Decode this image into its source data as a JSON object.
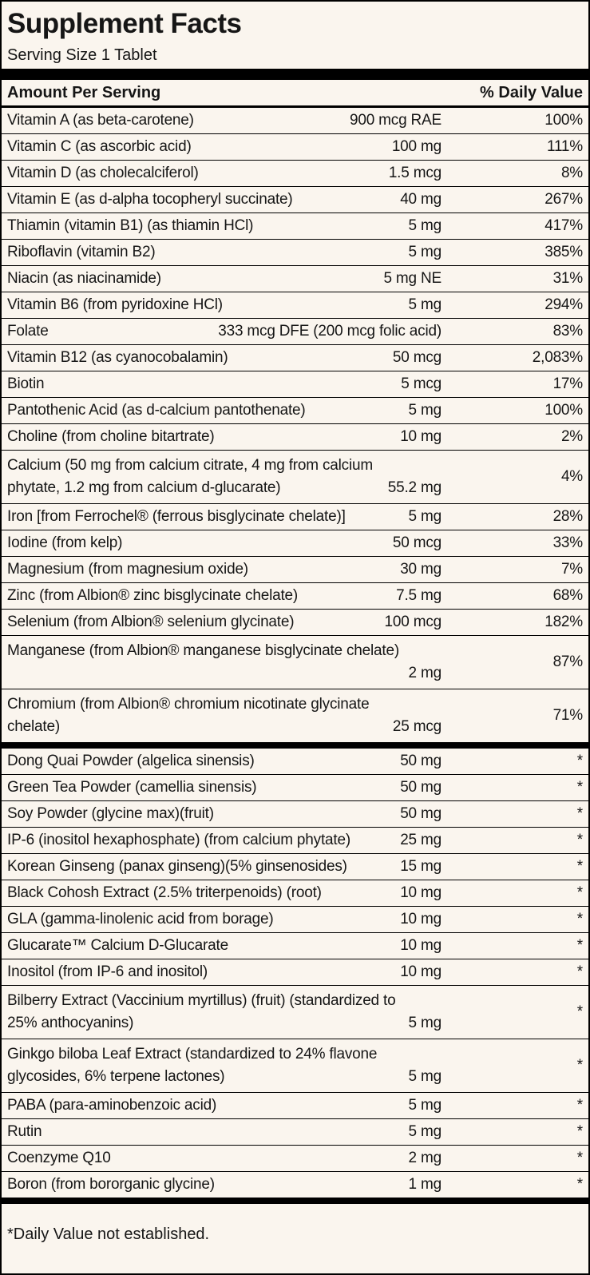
{
  "title": "Supplement Facts",
  "serving_size": "Serving Size 1 Tablet",
  "header": {
    "amount_label": "Amount Per Serving",
    "dv_label": "% Daily Value"
  },
  "footnote": "*Daily Value not established.",
  "colors": {
    "background": "#faf5ee",
    "text": "#161616",
    "rule": "#000000"
  },
  "sections": [
    {
      "rows": [
        {
          "name": "Vitamin A (as beta-carotene)",
          "amount": "900 mcg RAE",
          "dv": "100%"
        },
        {
          "name": "Vitamin C (as ascorbic acid)",
          "amount": "100 mg",
          "dv": "111%"
        },
        {
          "name": "Vitamin D (as cholecalciferol)",
          "amount": "1.5 mcg",
          "dv": "8%"
        },
        {
          "name": "Vitamin E (as d-alpha tocopheryl succinate)",
          "amount": "40 mg",
          "dv": "267%"
        },
        {
          "name": "Thiamin (vitamin B1) (as thiamin HCl)",
          "amount": "5 mg",
          "dv": "417%"
        },
        {
          "name": "Riboflavin (vitamin B2)",
          "amount": "5 mg",
          "dv": "385%"
        },
        {
          "name": "Niacin (as niacinamide)",
          "amount": "5 mg NE",
          "dv": "31%"
        },
        {
          "name": "Vitamin B6 (from pyridoxine HCl)",
          "amount": "5 mg",
          "dv": "294%"
        },
        {
          "name": "Folate",
          "amount": "333 mcg DFE (200 mcg folic acid)",
          "dv": "83%"
        },
        {
          "name": "Vitamin B12 (as cyanocobalamin)",
          "amount": "50 mcg",
          "dv": "2,083%"
        },
        {
          "name": "Biotin",
          "amount": "5 mcg",
          "dv": "17%"
        },
        {
          "name": "Pantothenic Acid (as d-calcium pantothenate)",
          "amount": "5 mg",
          "dv": "100%"
        },
        {
          "name": "Choline (from choline bitartrate)",
          "amount": "10 mg",
          "dv": "2%"
        },
        {
          "name": "Calcium (50 mg from calcium citrate, 4 mg from calcium",
          "name2": "phytate, 1.2 mg from calcium d-glucarate)",
          "amount": "55.2 mg",
          "dv": "4%"
        },
        {
          "name": "Iron [from Ferrochel® (ferrous bisglycinate chelate)]",
          "amount": "5 mg",
          "dv": "28%"
        },
        {
          "name": "Iodine (from kelp)",
          "amount": "50 mcg",
          "dv": "33%"
        },
        {
          "name": "Magnesium (from magnesium oxide)",
          "amount": "30 mg",
          "dv": "7%"
        },
        {
          "name": "Zinc (from Albion® zinc bisglycinate chelate)",
          "amount": "7.5 mg",
          "dv": "68%"
        },
        {
          "name": "Selenium (from Albion® selenium glycinate)",
          "amount": "100 mcg",
          "dv": "182%"
        },
        {
          "name": "Manganese (from Albion® manganese bisglycinate chelate)",
          "name2": "",
          "amount": "2 mg",
          "dv": "87%"
        },
        {
          "name": "Chromium (from Albion® chromium nicotinate glycinate",
          "name2": "chelate)",
          "amount": "25 mcg",
          "dv": "71%"
        }
      ]
    },
    {
      "rows": [
        {
          "name": "Dong Quai Powder (algelica sinensis)",
          "amount": "50 mg",
          "dv": "*"
        },
        {
          "name": "Green Tea Powder (camellia sinensis)",
          "amount": "50 mg",
          "dv": "*"
        },
        {
          "name": "Soy Powder (glycine max)(fruit)",
          "amount": "50 mg",
          "dv": "*"
        },
        {
          "name": "IP-6 (inositol hexaphosphate) (from calcium phytate)",
          "amount": "25 mg",
          "dv": "*"
        },
        {
          "name": "Korean Ginseng (panax ginseng)(5% ginsenosides)",
          "amount": "15 mg",
          "dv": "*"
        },
        {
          "name": "Black Cohosh Extract (2.5% triterpenoids) (root)",
          "amount": "10 mg",
          "dv": "*"
        },
        {
          "name": "GLA (gamma-linolenic acid from borage)",
          "amount": "10 mg",
          "dv": "*"
        },
        {
          "name": "Glucarate™ Calcium D-Glucarate",
          "amount": "10 mg",
          "dv": "*"
        },
        {
          "name": "Inositol (from IP-6 and inositol)",
          "amount": "10 mg",
          "dv": "*"
        },
        {
          "name": "Bilberry Extract (Vaccinium myrtillus) (fruit) (standardized to",
          "name2": "25% anthocyanins)",
          "amount": "5 mg",
          "dv": "*"
        },
        {
          "name": "Ginkgo biloba Leaf Extract (standardized to 24% flavone",
          "name2": "glycosides, 6% terpene lactones)",
          "amount": "5 mg",
          "dv": "*"
        },
        {
          "name": "PABA (para-aminobenzoic acid)",
          "amount": "5 mg",
          "dv": "*"
        },
        {
          "name": "Rutin",
          "amount": "5 mg",
          "dv": "*"
        },
        {
          "name": "Coenzyme Q10",
          "amount": "2 mg",
          "dv": "*"
        },
        {
          "name": "Boron (from bororganic glycine)",
          "amount": "1 mg",
          "dv": "*"
        }
      ]
    }
  ]
}
